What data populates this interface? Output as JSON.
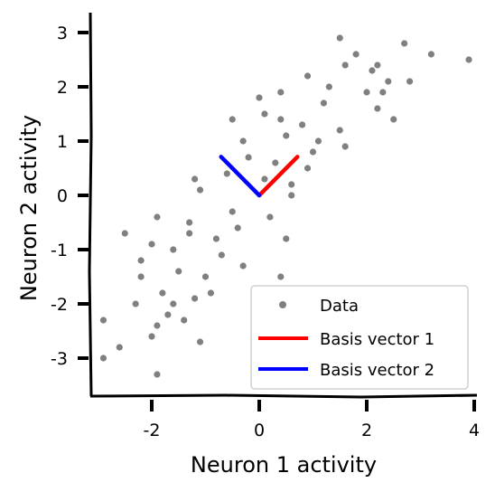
{
  "chart_data": {
    "type": "scatter",
    "title": "",
    "xlabel": "Neuron 1 activity",
    "ylabel": "Neuron 2 activity",
    "xlim": [
      -3.2,
      4.1
    ],
    "ylim": [
      -3.7,
      3.3
    ],
    "xticks": [
      -2,
      0,
      2,
      4
    ],
    "yticks": [
      -3,
      -2,
      -1,
      0,
      1,
      2,
      3
    ],
    "xtick_labels": [
      "-2",
      "0",
      "2",
      "4"
    ],
    "ytick_labels": [
      "-3",
      "-2",
      "-1",
      "0",
      "1",
      "2",
      "3"
    ],
    "grid": false,
    "legend_position": "bottom-right",
    "series": [
      {
        "name": "Data",
        "kind": "scatter",
        "color": "#808080",
        "x": [
          -2.9,
          -2.6,
          -2.9,
          -2.3,
          -1.9,
          -2.2,
          -1.8,
          -1.1,
          -1.9,
          -1.6,
          -2.2,
          -2.0,
          -1.5,
          -1.7,
          -1.0,
          -0.8,
          -0.7,
          -1.3,
          -1.1,
          -0.5,
          -0.4,
          -0.6,
          -0.9,
          -0.2,
          0.1,
          -0.3,
          0.3,
          0.2,
          0.5,
          0.6,
          0.1,
          0.4,
          0.8,
          1.0,
          1.2,
          0.9,
          1.3,
          1.5,
          1.6,
          1.1,
          2.0,
          2.2,
          1.8,
          2.5,
          2.7,
          2.3,
          3.2,
          2.1,
          1.5,
          3.9,
          2.8,
          -2.5,
          -2.0,
          -1.6,
          -1.4,
          -1.2,
          -0.3,
          0.4,
          0.5,
          -1.9,
          -1.2,
          0.0,
          0.9,
          2.4,
          0.4,
          1.6,
          2.2,
          -1.3,
          -0.5,
          0.6
        ],
        "y": [
          -3.0,
          -2.8,
          -2.3,
          -2.0,
          -2.4,
          -1.5,
          -1.8,
          -2.7,
          -3.3,
          -2.0,
          -1.2,
          -0.9,
          -1.4,
          -2.2,
          -1.5,
          -0.8,
          -1.1,
          -0.5,
          0.1,
          -0.3,
          -0.6,
          0.4,
          -1.8,
          0.7,
          0.3,
          1.0,
          0.6,
          -0.4,
          1.1,
          0.2,
          1.5,
          1.9,
          1.3,
          0.8,
          1.7,
          2.2,
          2.0,
          1.2,
          2.4,
          1.0,
          1.9,
          2.4,
          2.6,
          1.4,
          2.8,
          1.9,
          2.6,
          2.3,
          2.9,
          2.5,
          2.1,
          -0.7,
          -2.6,
          -1.0,
          -2.3,
          -1.9,
          -1.3,
          -1.5,
          -0.8,
          -0.4,
          0.3,
          1.8,
          0.5,
          2.1,
          1.4,
          0.9,
          1.6,
          -0.7,
          1.4,
          0.0
        ]
      },
      {
        "name": "Basis vector 1",
        "kind": "line",
        "color": "#ff0000",
        "x": [
          0,
          0.71
        ],
        "y": [
          0,
          0.71
        ]
      },
      {
        "name": "Basis vector 2",
        "kind": "line",
        "color": "#0000ff",
        "x": [
          0,
          -0.71
        ],
        "y": [
          0,
          0.71
        ]
      }
    ]
  }
}
